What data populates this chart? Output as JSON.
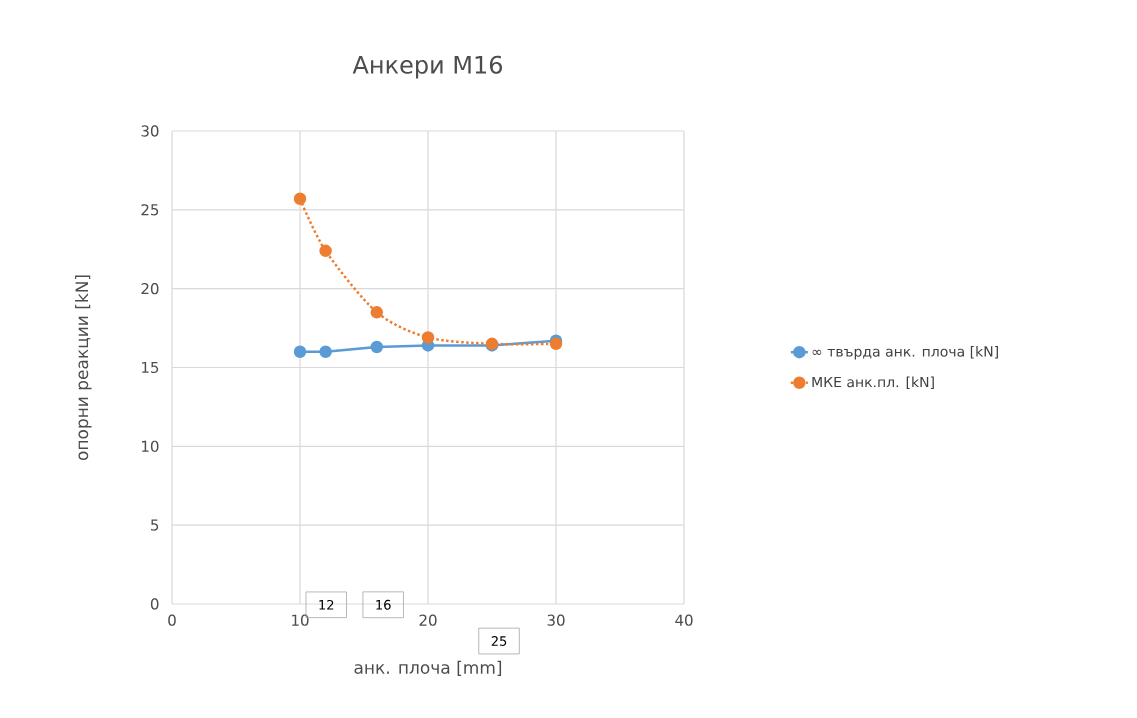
{
  "chart_data": {
    "type": "line",
    "title": "Анкери М16",
    "xlabel": "анк. плоча [mm]",
    "ylabel": "опорни реакции [kN]",
    "x": [
      10,
      12,
      16,
      20,
      25,
      30
    ],
    "series": [
      {
        "name": "∞ твърда  анк. плоча [kN]",
        "color": "#5b9bd5",
        "values": [
          16.0,
          16.0,
          16.3,
          16.4,
          16.4,
          16.7
        ],
        "line_style": "solid"
      },
      {
        "name": "МКЕ анк.пл. [kN]",
        "color": "#ed7d31",
        "values": [
          25.7,
          22.4,
          18.5,
          16.9,
          16.5,
          16.5
        ],
        "line_style": "dotted"
      }
    ],
    "xlim": [
      0,
      40
    ],
    "xticks": [
      0,
      10,
      20,
      30,
      40
    ],
    "ylim": [
      0,
      30
    ],
    "yticks": [
      0,
      5,
      10,
      15,
      20,
      25,
      30
    ],
    "grid": true,
    "legend": "right",
    "marker": "circle",
    "annotations": [
      "12",
      "16",
      "25"
    ]
  }
}
